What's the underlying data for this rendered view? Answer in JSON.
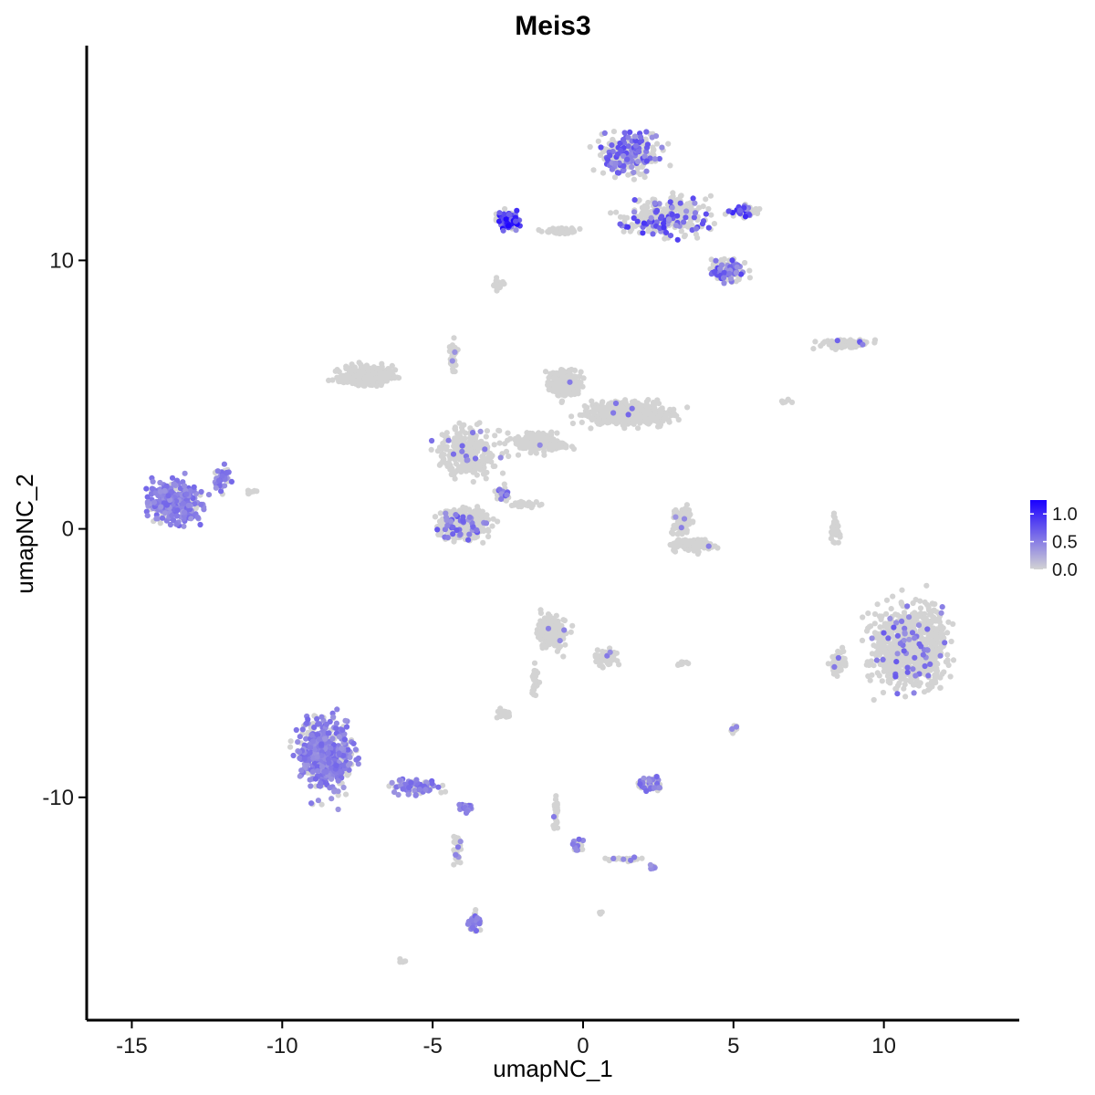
{
  "chart_data": {
    "type": "scatter",
    "title": "Meis3",
    "xlabel": "umapNC_1",
    "ylabel": "umapNC_2",
    "xlim": [
      -16.5,
      14.5
    ],
    "ylim": [
      -18.3,
      18.0
    ],
    "x_ticks": [
      -15,
      -10,
      -5,
      0,
      5,
      10
    ],
    "x_tick_labels": [
      "-15",
      "-10",
      "-5",
      "0",
      "5",
      "10"
    ],
    "y_ticks": [
      -10,
      0,
      10
    ],
    "y_tick_labels": [
      "-10",
      "0",
      "10"
    ],
    "grid": false,
    "legend": {
      "placement": "right",
      "type": "colorbar",
      "range": [
        0,
        1.25
      ],
      "ticks": [
        0.0,
        0.5,
        1.0
      ],
      "tick_labels": [
        "0.0",
        "0.5",
        "1.0"
      ],
      "low_color": "#d3d3d3",
      "high_color": "#1a00ff"
    },
    "clusters": [
      {
        "cx": -13.6,
        "cy": 1.0,
        "rx": 1.5,
        "ry": 1.3,
        "n": 340,
        "expr_frac": 0.85,
        "expr_max": 0.6
      },
      {
        "cx": -12.0,
        "cy": 1.8,
        "rx": 0.45,
        "ry": 0.8,
        "n": 40,
        "expr_frac": 0.7,
        "expr_max": 0.6
      },
      {
        "cx": -8.6,
        "cy": -8.4,
        "rx": 1.6,
        "ry": 2.3,
        "n": 520,
        "expr_frac": 0.7,
        "expr_max": 0.6
      },
      {
        "cx": -5.6,
        "cy": -9.6,
        "rx": 1.5,
        "ry": 0.5,
        "n": 90,
        "expr_frac": 0.55,
        "expr_max": 0.6
      },
      {
        "cx": -3.9,
        "cy": -10.4,
        "rx": 0.35,
        "ry": 0.25,
        "n": 30,
        "expr_frac": 0.9,
        "expr_max": 0.6
      },
      {
        "cx": -3.6,
        "cy": -14.6,
        "rx": 0.35,
        "ry": 0.7,
        "n": 40,
        "expr_frac": 0.6,
        "expr_max": 0.6
      },
      {
        "cx": -4.2,
        "cy": -12.0,
        "rx": 0.25,
        "ry": 1.1,
        "n": 25,
        "expr_frac": 0.3,
        "expr_max": 0.5
      },
      {
        "cx": -7.2,
        "cy": 5.7,
        "rx": 1.6,
        "ry": 0.6,
        "n": 300,
        "expr_frac": 0.0,
        "expr_max": 0.0
      },
      {
        "cx": -3.8,
        "cy": 2.9,
        "rx": 1.8,
        "ry": 1.6,
        "n": 260,
        "expr_frac": 0.03,
        "expr_max": 0.6
      },
      {
        "cx": -4.0,
        "cy": 0.2,
        "rx": 1.5,
        "ry": 0.95,
        "n": 380,
        "expr_frac": 0.1,
        "expr_max": 0.7
      },
      {
        "cx": -1.5,
        "cy": 3.2,
        "rx": 1.6,
        "ry": 0.6,
        "n": 200,
        "expr_frac": 0.01,
        "expr_max": 0.5
      },
      {
        "cx": -0.6,
        "cy": 5.4,
        "rx": 0.9,
        "ry": 0.9,
        "n": 200,
        "expr_frac": 0.01,
        "expr_max": 0.5
      },
      {
        "cx": 1.5,
        "cy": 4.3,
        "rx": 2.4,
        "ry": 0.8,
        "n": 420,
        "expr_frac": 0.02,
        "expr_max": 0.6
      },
      {
        "cx": -4.3,
        "cy": 6.5,
        "rx": 0.2,
        "ry": 1.2,
        "n": 35,
        "expr_frac": 0.05,
        "expr_max": 0.6
      },
      {
        "cx": -2.0,
        "cy": 0.9,
        "rx": 0.8,
        "ry": 0.2,
        "n": 30,
        "expr_frac": 0.0,
        "expr_max": 0.0
      },
      {
        "cx": 1.6,
        "cy": 14.0,
        "rx": 1.6,
        "ry": 1.4,
        "n": 280,
        "expr_frac": 0.35,
        "expr_max": 0.8
      },
      {
        "cx": 2.8,
        "cy": 11.6,
        "rx": 2.2,
        "ry": 1.2,
        "n": 300,
        "expr_frac": 0.2,
        "expr_max": 0.9
      },
      {
        "cx": 4.8,
        "cy": 9.6,
        "rx": 1.0,
        "ry": 0.7,
        "n": 130,
        "expr_frac": 0.35,
        "expr_max": 0.8
      },
      {
        "cx": 5.4,
        "cy": 11.8,
        "rx": 0.7,
        "ry": 0.4,
        "n": 60,
        "expr_frac": 0.3,
        "expr_max": 1.0
      },
      {
        "cx": -2.5,
        "cy": 11.5,
        "rx": 0.7,
        "ry": 0.55,
        "n": 80,
        "expr_frac": 0.65,
        "expr_max": 1.2
      },
      {
        "cx": -0.8,
        "cy": 11.1,
        "rx": 1.0,
        "ry": 0.2,
        "n": 40,
        "expr_frac": 0.0,
        "expr_max": 0.0
      },
      {
        "cx": -2.8,
        "cy": 9.1,
        "rx": 0.3,
        "ry": 0.4,
        "n": 15,
        "expr_frac": 0.0,
        "expr_max": 0.0
      },
      {
        "cx": 8.8,
        "cy": 6.9,
        "rx": 1.4,
        "ry": 0.3,
        "n": 90,
        "expr_frac": 0.12,
        "expr_max": 0.7
      },
      {
        "cx": 3.3,
        "cy": 0.3,
        "rx": 0.5,
        "ry": 0.9,
        "n": 100,
        "expr_frac": 0.02,
        "expr_max": 0.5
      },
      {
        "cx": 3.6,
        "cy": -0.6,
        "rx": 1.1,
        "ry": 0.4,
        "n": 110,
        "expr_frac": 0.01,
        "expr_max": 0.5
      },
      {
        "cx": 8.4,
        "cy": 0.0,
        "rx": 0.25,
        "ry": 1.0,
        "n": 30,
        "expr_frac": 0.0,
        "expr_max": 0.0
      },
      {
        "cx": 10.9,
        "cy": -4.4,
        "rx": 2.1,
        "ry": 2.6,
        "n": 900,
        "expr_frac": 0.04,
        "expr_max": 0.7
      },
      {
        "cx": 8.5,
        "cy": -5.0,
        "rx": 0.5,
        "ry": 0.8,
        "n": 50,
        "expr_frac": 0.05,
        "expr_max": 0.6
      },
      {
        "cx": -1.0,
        "cy": -3.8,
        "rx": 0.9,
        "ry": 1.1,
        "n": 150,
        "expr_frac": 0.02,
        "expr_max": 0.5
      },
      {
        "cx": 0.8,
        "cy": -4.8,
        "rx": 0.6,
        "ry": 0.6,
        "n": 70,
        "expr_frac": 0.02,
        "expr_max": 0.5
      },
      {
        "cx": -2.6,
        "cy": -6.9,
        "rx": 0.4,
        "ry": 0.3,
        "n": 30,
        "expr_frac": 0.0,
        "expr_max": 0.0
      },
      {
        "cx": -1.6,
        "cy": -5.6,
        "rx": 0.2,
        "ry": 1.0,
        "n": 25,
        "expr_frac": 0.0,
        "expr_max": 0.0
      },
      {
        "cx": 2.3,
        "cy": -9.5,
        "rx": 0.7,
        "ry": 0.4,
        "n": 70,
        "expr_frac": 0.3,
        "expr_max": 0.6
      },
      {
        "cx": -0.9,
        "cy": -10.6,
        "rx": 0.15,
        "ry": 1.2,
        "n": 25,
        "expr_frac": 0.2,
        "expr_max": 0.9
      },
      {
        "cx": -0.2,
        "cy": -11.8,
        "rx": 0.3,
        "ry": 0.4,
        "n": 25,
        "expr_frac": 0.4,
        "expr_max": 0.6
      },
      {
        "cx": 1.4,
        "cy": -12.3,
        "rx": 0.9,
        "ry": 0.15,
        "n": 25,
        "expr_frac": 0.2,
        "expr_max": 0.5
      },
      {
        "cx": 2.3,
        "cy": -12.6,
        "rx": 0.25,
        "ry": 0.2,
        "n": 15,
        "expr_frac": 0.6,
        "expr_max": 0.6
      },
      {
        "cx": -2.7,
        "cy": 1.3,
        "rx": 0.4,
        "ry": 0.6,
        "n": 30,
        "expr_frac": 0.3,
        "expr_max": 0.7
      },
      {
        "cx": -11.0,
        "cy": 1.4,
        "rx": 0.4,
        "ry": 0.15,
        "n": 10,
        "expr_frac": 0.0,
        "expr_max": 0.0
      },
      {
        "cx": 5.0,
        "cy": -7.5,
        "rx": 0.3,
        "ry": 0.3,
        "n": 15,
        "expr_frac": 0.1,
        "expr_max": 0.5
      },
      {
        "cx": 6.8,
        "cy": 4.8,
        "rx": 0.3,
        "ry": 0.2,
        "n": 6,
        "expr_frac": 0.0,
        "expr_max": 0.0
      },
      {
        "cx": -6.0,
        "cy": -16.1,
        "rx": 0.2,
        "ry": 0.15,
        "n": 8,
        "expr_frac": 0.0,
        "expr_max": 0.0
      },
      {
        "cx": 0.6,
        "cy": -14.3,
        "rx": 0.15,
        "ry": 0.15,
        "n": 6,
        "expr_frac": 0.0,
        "expr_max": 0.0
      },
      {
        "cx": 3.3,
        "cy": -5.0,
        "rx": 0.4,
        "ry": 0.15,
        "n": 8,
        "expr_frac": 0.0,
        "expr_max": 0.0
      }
    ]
  }
}
